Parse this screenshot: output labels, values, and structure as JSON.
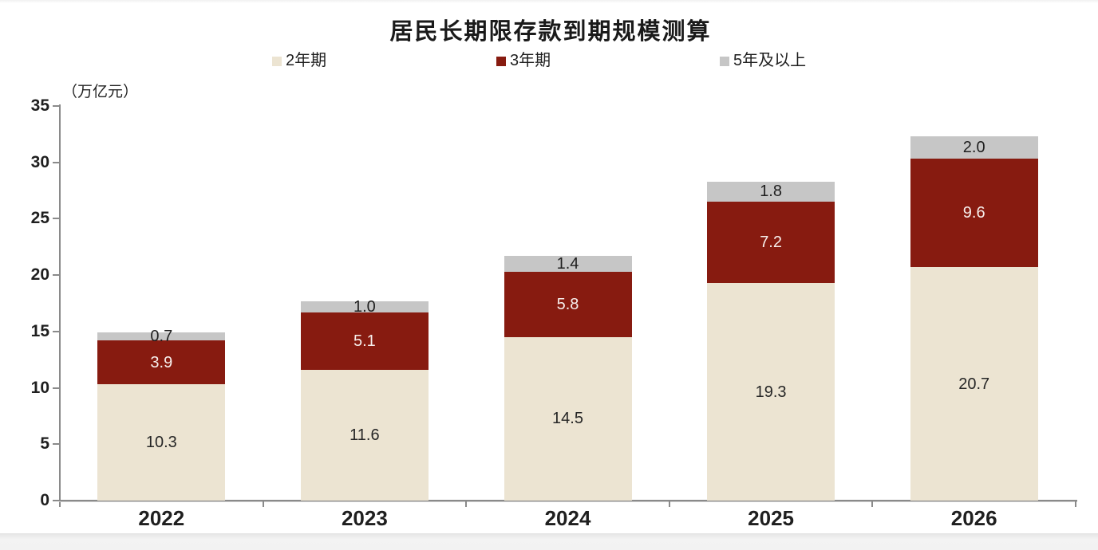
{
  "chart_data": {
    "type": "bar",
    "stacked": true,
    "title": "居民长期限存款到期规模测算",
    "unit_label": "（万亿元）",
    "categories": [
      "2022",
      "2023",
      "2024",
      "2025",
      "2026"
    ],
    "series": [
      {
        "name": "2年期",
        "color": "#ece4d2",
        "label_color": "#262626",
        "values": [
          10.3,
          11.6,
          14.5,
          19.3,
          20.7
        ]
      },
      {
        "name": "3年期",
        "color": "#871b10",
        "label_color": "#f7efec",
        "values": [
          3.9,
          5.1,
          5.8,
          7.2,
          9.6
        ]
      },
      {
        "name": "5年及以上",
        "color": "#c6c6c6",
        "label_color": "#1f1f1f",
        "values": [
          0.7,
          1.0,
          1.4,
          1.8,
          2.0
        ]
      }
    ],
    "ylim": [
      0,
      35
    ],
    "yticks": [
      0,
      5,
      10,
      15,
      20,
      25,
      30,
      35
    ],
    "legend_position": "top",
    "grid": false,
    "value_labels": true,
    "axis_color": "#8a8a8a",
    "axis_shadow_color": "#cfcfcf",
    "text_color": "#1f1f1f"
  }
}
